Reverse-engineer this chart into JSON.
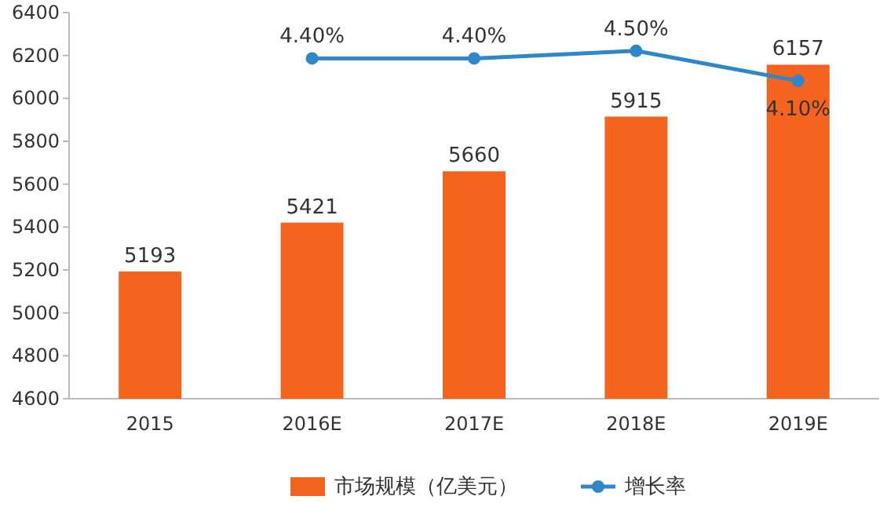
{
  "chart_data": {
    "type": "bar",
    "categories": [
      "2015",
      "2016E",
      "2017E",
      "2018E",
      "2019E"
    ],
    "ylim": [
      4600,
      6400
    ],
    "yticks": [
      4600,
      4800,
      5000,
      5200,
      5400,
      5600,
      5800,
      6000,
      6200,
      6400
    ],
    "y2lim": [
      -0.13,
      5.01
    ],
    "grid": false,
    "legend": "bottom",
    "series": [
      {
        "name": "市场规模（亿美元）",
        "color": "#f5641e",
        "values": [
          5193,
          5421,
          5660,
          5915,
          6157
        ],
        "value_labels": [
          "5193",
          "5421",
          "5660",
          "5915",
          "6157"
        ]
      },
      {
        "name": "增长率",
        "type": "line",
        "axis": "y2",
        "color": "#2f86c8",
        "marker": "circle",
        "values": [
          null,
          4.4,
          4.4,
          4.5,
          4.1
        ],
        "value_labels": [
          null,
          "4.40%",
          "4.40%",
          "4.50%",
          "4.10%"
        ]
      }
    ]
  }
}
